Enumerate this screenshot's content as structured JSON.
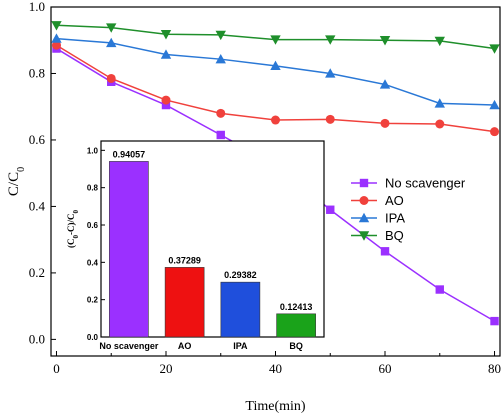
{
  "chart_data": [
    {
      "type": "line",
      "xlabel": "Time(min)",
      "ylabel": "C/C",
      "ylabel_subscript": "0",
      "xlim": [
        -1,
        81
      ],
      "ylim": [
        -0.05,
        1.0
      ],
      "xticks": [
        0,
        20,
        40,
        60,
        80
      ],
      "yticks": [
        0.0,
        0.2,
        0.4,
        0.6,
        0.8,
        1.0
      ],
      "xtick_labels": [
        "0",
        "20",
        "40",
        "60",
        "80"
      ],
      "ytick_labels": [
        "0.0",
        "0.2",
        "0.4",
        "0.6",
        "0.8",
        "1.0"
      ],
      "grid": false,
      "legend_position": "right",
      "x": [
        0,
        10,
        20,
        30,
        40,
        50,
        60,
        70,
        80
      ],
      "series": [
        {
          "name": "No scavenger",
          "marker": "square",
          "color": "#9b30ff",
          "values": [
            0.875,
            0.775,
            0.705,
            0.615,
            0.525,
            0.39,
            0.265,
            0.15,
            0.055
          ]
        },
        {
          "name": "AO",
          "marker": "circle",
          "color": "#f0413c",
          "values": [
            0.885,
            0.785,
            0.72,
            0.68,
            0.66,
            0.662,
            0.65,
            0.648,
            0.625
          ]
        },
        {
          "name": "IPA",
          "marker": "triangle-up",
          "color": "#2a78d6",
          "values": [
            0.905,
            0.892,
            0.857,
            0.843,
            0.823,
            0.8,
            0.767,
            0.71,
            0.705
          ]
        },
        {
          "name": "BQ",
          "marker": "triangle-down",
          "color": "#1f8f2b",
          "values": [
            0.945,
            0.938,
            0.918,
            0.916,
            0.902,
            0.902,
            0.9,
            0.898,
            0.875
          ]
        }
      ]
    },
    {
      "type": "bar",
      "ylabel": "(C -C)/C",
      "ylabel_parts": [
        "(C",
        "0",
        "-C)/C",
        "0"
      ],
      "ylim": [
        0,
        1.05
      ],
      "yticks": [
        0.0,
        0.2,
        0.4,
        0.6,
        0.8,
        1.0
      ],
      "ytick_labels": [
        "0.0",
        "0.2",
        "0.4",
        "0.6",
        "0.8",
        "1.0"
      ],
      "categories": [
        "No scavenger",
        "AO",
        "IPA",
        "BQ"
      ],
      "values": [
        0.94057,
        0.37289,
        0.29382,
        0.12413
      ],
      "value_labels": [
        "0.94057",
        "0.37289",
        "0.29382",
        "0.12413"
      ],
      "colors": [
        "#9b30ff",
        "#ee1111",
        "#1f4fdc",
        "#1aa31a"
      ]
    }
  ]
}
